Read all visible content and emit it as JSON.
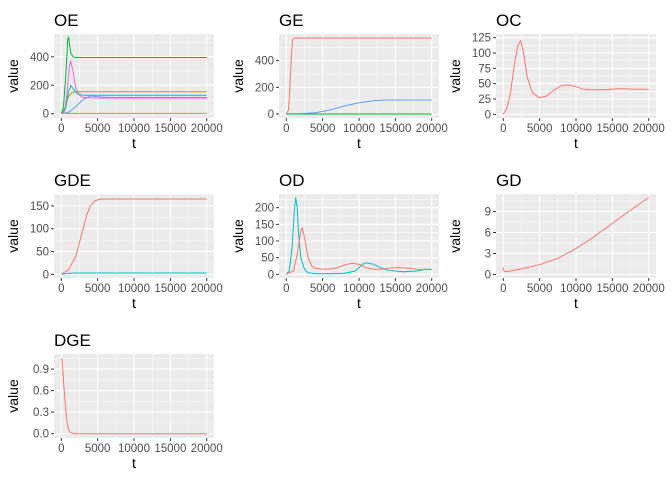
{
  "chart_data": [
    {
      "type": "line",
      "title": "OE",
      "xlabel": "t",
      "ylabel": "value",
      "xlim": [
        -1000,
        21000
      ],
      "ylim": [
        -30,
        560
      ],
      "x_ticks": [
        0,
        5000,
        10000,
        15000,
        20000
      ],
      "x_tick_labels": [
        "0",
        "5000",
        "10000",
        "15000",
        "20000"
      ],
      "y_ticks": [
        0,
        200,
        400
      ],
      "y_tick_labels": [
        "0",
        "200",
        "400"
      ],
      "series": [
        {
          "color": "#00ba38",
          "x": [
            0,
            300,
            600,
            900,
            1000,
            1100,
            1300,
            1600,
            2000,
            3000,
            20000
          ],
          "y": [
            0,
            50,
            250,
            520,
            540,
            500,
            430,
            400,
            395,
            395,
            395
          ]
        },
        {
          "color": "#f564e3",
          "x": [
            0,
            500,
            800,
            1100,
            1300,
            1600,
            2000,
            2500,
            3000,
            5000,
            20000
          ],
          "y": [
            0,
            20,
            150,
            330,
            370,
            300,
            180,
            130,
            115,
            110,
            110
          ]
        },
        {
          "color": "#b79f00",
          "x": [
            0,
            500,
            1000,
            1500,
            2000,
            3000,
            20000
          ],
          "y": [
            0,
            40,
            120,
            150,
            155,
            155,
            155
          ]
        },
        {
          "color": "#00bfc4",
          "x": [
            0,
            600,
            1000,
            1300,
            1700,
            2200,
            3000,
            20000
          ],
          "y": [
            0,
            40,
            150,
            200,
            170,
            140,
            130,
            130
          ]
        },
        {
          "color": "#619cff",
          "x": [
            0,
            1000,
            2000,
            3000,
            4000,
            5000,
            6000,
            20000
          ],
          "y": [
            0,
            10,
            50,
            100,
            125,
            120,
            115,
            115
          ]
        },
        {
          "color": "#f8766d",
          "x": [
            0,
            20000
          ],
          "y": [
            2,
            2
          ]
        }
      ]
    },
    {
      "type": "line",
      "title": "GE",
      "xlabel": "t",
      "ylabel": "value",
      "xlim": [
        -1000,
        21000
      ],
      "ylim": [
        -30,
        600
      ],
      "x_ticks": [
        0,
        5000,
        10000,
        15000,
        20000
      ],
      "x_tick_labels": [
        "0",
        "5000",
        "10000",
        "15000",
        "20000"
      ],
      "y_ticks": [
        0,
        200,
        400
      ],
      "y_tick_labels": [
        "0",
        "200",
        "400"
      ],
      "series": [
        {
          "color": "#f8766d",
          "x": [
            0,
            300,
            500,
            700,
            900,
            1200,
            20000
          ],
          "y": [
            0,
            30,
            200,
            450,
            560,
            570,
            570
          ]
        },
        {
          "color": "#619cff",
          "x": [
            0,
            2000,
            4000,
            6000,
            8000,
            10000,
            12000,
            14000,
            20000
          ],
          "y": [
            0,
            2,
            10,
            30,
            60,
            85,
            100,
            105,
            105
          ]
        },
        {
          "color": "#00ba38",
          "x": [
            0,
            20000
          ],
          "y": [
            0,
            0
          ]
        }
      ]
    },
    {
      "type": "line",
      "title": "OC",
      "xlabel": "t",
      "ylabel": "value",
      "xlim": [
        -1000,
        21000
      ],
      "ylim": [
        -6,
        131
      ],
      "x_ticks": [
        0,
        5000,
        10000,
        15000,
        20000
      ],
      "x_tick_labels": [
        "0",
        "5000",
        "10000",
        "15000",
        "20000"
      ],
      "y_ticks": [
        0,
        25,
        50,
        75,
        100,
        125
      ],
      "y_tick_labels": [
        "0",
        "25",
        "50",
        "75",
        "100",
        "125"
      ],
      "series": [
        {
          "color": "#f8766d",
          "x": [
            0,
            500,
            1000,
            1500,
            2000,
            2400,
            2800,
            3300,
            4000,
            5000,
            6000,
            7000,
            8000,
            9000,
            10000,
            11000,
            12000,
            14000,
            16000,
            18000,
            20000
          ],
          "y": [
            0,
            10,
            35,
            80,
            112,
            120,
            100,
            60,
            35,
            27,
            30,
            40,
            47,
            48,
            45,
            41,
            40,
            40,
            42,
            41,
            41
          ]
        }
      ]
    },
    {
      "type": "line",
      "title": "GDE",
      "xlabel": "t",
      "ylabel": "value",
      "xlim": [
        -1000,
        21000
      ],
      "ylim": [
        -8,
        176
      ],
      "x_ticks": [
        0,
        5000,
        10000,
        15000,
        20000
      ],
      "x_tick_labels": [
        "0",
        "5000",
        "10000",
        "15000",
        "20000"
      ],
      "y_ticks": [
        0,
        50,
        100,
        150
      ],
      "y_tick_labels": [
        "0",
        "50",
        "100",
        "150"
      ],
      "series": [
        {
          "color": "#f8766d",
          "x": [
            0,
            1000,
            2000,
            2500,
            3000,
            3500,
            4000,
            4500,
            5000,
            5500,
            6000,
            20000
          ],
          "y": [
            0,
            10,
            40,
            70,
            100,
            130,
            150,
            160,
            163,
            165,
            165,
            165
          ]
        },
        {
          "color": "#00bfc4",
          "x": [
            0,
            1000,
            2000,
            3000,
            20000
          ],
          "y": [
            0,
            2,
            3,
            3,
            3
          ]
        }
      ]
    },
    {
      "type": "line",
      "title": "OD",
      "xlabel": "t",
      "ylabel": "value",
      "xlim": [
        -1000,
        21000
      ],
      "ylim": [
        -11,
        241
      ],
      "x_ticks": [
        0,
        5000,
        10000,
        15000,
        20000
      ],
      "x_tick_labels": [
        "0",
        "5000",
        "10000",
        "15000",
        "20000"
      ],
      "y_ticks": [
        0,
        50,
        100,
        150,
        200
      ],
      "y_tick_labels": [
        "0",
        "50",
        "100",
        "150",
        "200"
      ],
      "series": [
        {
          "color": "#00bfc4",
          "x": [
            0,
            400,
            800,
            1100,
            1300,
            1500,
            1700,
            2000,
            2500,
            3000,
            4000,
            6000,
            8000,
            9500,
            10500,
            11000,
            12000,
            13000,
            14000,
            16000,
            18000,
            19000,
            20000
          ],
          "y": [
            0,
            10,
            80,
            190,
            230,
            200,
            120,
            50,
            15,
            5,
            2,
            2,
            3,
            10,
            30,
            35,
            30,
            20,
            12,
            8,
            10,
            15,
            15
          ]
        },
        {
          "color": "#f8766d",
          "x": [
            0,
            1000,
            1500,
            2000,
            2200,
            2500,
            3000,
            3500,
            4000,
            5000,
            6000,
            7000,
            8000,
            9000,
            10000,
            11000,
            12000,
            13000,
            14000,
            15000,
            16000,
            17000,
            18000,
            19000,
            20000
          ],
          "y": [
            0,
            10,
            60,
            130,
            140,
            110,
            50,
            25,
            18,
            15,
            16,
            20,
            28,
            33,
            30,
            20,
            15,
            15,
            18,
            20,
            20,
            18,
            15,
            14,
            15
          ]
        }
      ]
    },
    {
      "type": "line",
      "title": "GD",
      "xlabel": "t",
      "ylabel": "value",
      "xlim": [
        -1000,
        21000
      ],
      "ylim": [
        -0.5,
        11.5
      ],
      "x_ticks": [
        0,
        5000,
        10000,
        15000,
        20000
      ],
      "x_tick_labels": [
        "0",
        "5000",
        "10000",
        "15000",
        "20000"
      ],
      "y_ticks": [
        0,
        3,
        6,
        9
      ],
      "y_tick_labels": [
        "0",
        "3",
        "6",
        "9"
      ],
      "series": [
        {
          "color": "#f8766d",
          "x": [
            0,
            100,
            300,
            1000,
            2500,
            5000,
            7500,
            10000,
            12500,
            15000,
            17500,
            20000
          ],
          "y": [
            1.0,
            0.5,
            0.4,
            0.5,
            0.8,
            1.4,
            2.3,
            3.7,
            5.4,
            7.3,
            9.2,
            11.0
          ]
        }
      ]
    },
    {
      "type": "line",
      "title": "DGE",
      "xlabel": "t",
      "ylabel": "value",
      "xlim": [
        -1000,
        21000
      ],
      "ylim": [
        -0.06,
        1.11
      ],
      "x_ticks": [
        0,
        5000,
        10000,
        15000,
        20000
      ],
      "x_tick_labels": [
        "0",
        "5000",
        "10000",
        "15000",
        "20000"
      ],
      "y_ticks": [
        0,
        0.3,
        0.6,
        0.9
      ],
      "y_tick_labels": [
        "0.0",
        "0.3",
        "0.6",
        "0.9"
      ],
      "series": [
        {
          "color": "#f8766d",
          "x": [
            0,
            100,
            200,
            400,
            600,
            800,
            1000,
            1200,
            1500,
            2000,
            20000
          ],
          "y": [
            1.05,
            1.03,
            0.9,
            0.6,
            0.35,
            0.15,
            0.06,
            0.02,
            0.005,
            0,
            0
          ]
        }
      ]
    }
  ]
}
